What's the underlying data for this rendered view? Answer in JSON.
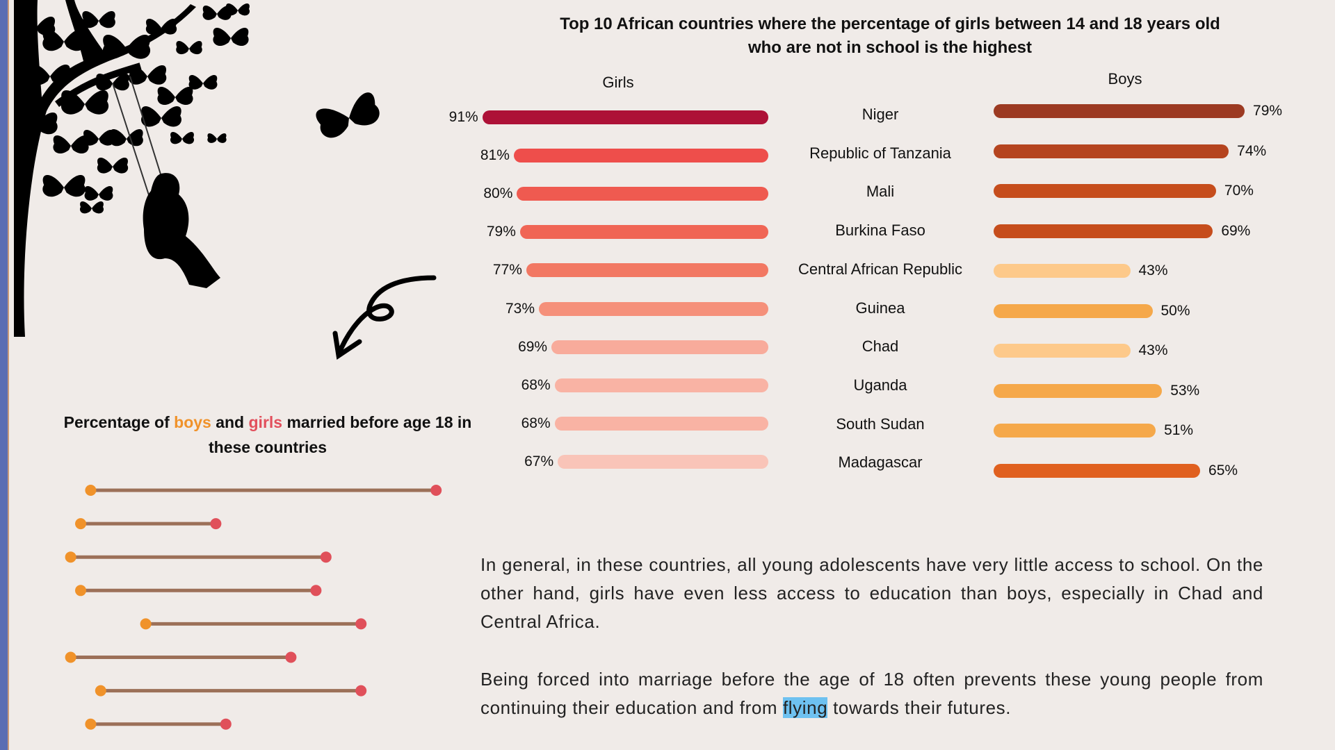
{
  "colors": {
    "background": "#f0ebe8",
    "edge": "#5a6db3",
    "boys_dot": "#f0922a",
    "girls_dot": "#e0505a",
    "connector": "#9c7058",
    "highlight": "#6ec1f0"
  },
  "chart_data": [
    {
      "type": "bar",
      "title": "Top 10 African countries where the percentage of girls between 14 and 18 years old who are not in school is the highest",
      "categories": [
        "Niger",
        "Republic of Tanzania",
        "Mali",
        "Burkina Faso",
        "Central African Republic",
        "Guinea",
        "Chad",
        "Uganda",
        "South Sudan",
        "Madagascar"
      ],
      "series": [
        {
          "name": "Girls",
          "values": [
            91,
            81,
            80,
            79,
            77,
            73,
            69,
            68,
            68,
            67
          ],
          "labels": [
            "91%",
            "81%",
            "80%",
            "79%",
            "77%",
            "73%",
            "69%",
            "68%",
            "68%",
            "67%"
          ],
          "colors": [
            "#ad1137",
            "#ee4e4b",
            "#ef5a50",
            "#f06555",
            "#f27863",
            "#f5907a",
            "#f8ab9b",
            "#f9b3a4",
            "#f9b3a4",
            "#f9c4b8"
          ]
        },
        {
          "name": "Boys",
          "values": [
            79,
            74,
            70,
            69,
            43,
            50,
            43,
            53,
            51,
            65
          ],
          "labels": [
            "79%",
            "74%",
            "70%",
            "69%",
            "43%",
            "50%",
            "43%",
            "53%",
            "51%",
            "65%"
          ],
          "colors": [
            "#9c3a22",
            "#b5441f",
            "#c64d1c",
            "#c64d1c",
            "#fdc98a",
            "#f5a84a",
            "#fdc98a",
            "#f5a84a",
            "#f5a84a",
            "#e0601f"
          ]
        }
      ],
      "xlim": [
        0,
        100
      ]
    },
    {
      "type": "scatter",
      "title_parts": [
        "Percentage of ",
        "boys",
        " and ",
        "girls",
        " married before age 18 in these countries"
      ],
      "series": [
        {
          "name": "boys",
          "values": [
            7,
            5,
            3,
            5,
            18,
            3,
            9,
            7
          ]
        },
        {
          "name": "girls",
          "values": [
            76,
            32,
            54,
            52,
            61,
            47,
            61,
            34
          ]
        }
      ],
      "xlim": [
        0,
        100
      ]
    }
  ],
  "paragraphs": {
    "p1": "In general, in these countries, all young adolescents have very little access to school. On the other hand, girls have even less access to education than boys, especially in Chad and Central Africa.",
    "p2_before": "Being forced into marriage before the age of 18 often prevents these young people from continuing their education and from ",
    "p2_highlight": "flying",
    "p2_after": " towards their futures."
  }
}
